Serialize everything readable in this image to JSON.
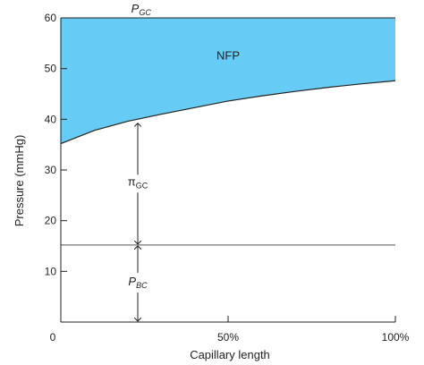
{
  "chart_data": {
    "type": "area",
    "xlabel": "Capillary length",
    "ylabel": "Pressure (mmHg)",
    "xlim": [
      0,
      100
    ],
    "ylim": [
      0,
      60
    ],
    "x_ticks": [
      {
        "value": 0,
        "label": "0"
      },
      {
        "value": 50,
        "label": "50%"
      },
      {
        "value": 100,
        "label": "100%"
      }
    ],
    "y_ticks": [
      {
        "value": 10,
        "label": "10"
      },
      {
        "value": 20,
        "label": "20"
      },
      {
        "value": 30,
        "label": "30"
      },
      {
        "value": 40,
        "label": "40"
      },
      {
        "value": 50,
        "label": "50"
      },
      {
        "value": 60,
        "label": "60"
      }
    ],
    "series": [
      {
        "values_upper": 60,
        "x": [
          0,
          100
        ],
        "y": [
          60,
          60
        ]
      },
      {
        "x": [
          0,
          10,
          20,
          30,
          40,
          50,
          60,
          70,
          80,
          90,
          100
        ],
        "y": [
          35.2,
          37.8,
          39.6,
          41.0,
          42.3,
          43.6,
          44.6,
          45.5,
          46.3,
          47.0,
          47.6
        ]
      },
      {
        "x": [
          0,
          100
        ],
        "y": [
          15.2,
          15.2
        ]
      }
    ],
    "fill_color": "#66CCF5",
    "annotations": {
      "pgc": {
        "main": "P",
        "sub": "GC",
        "x": 24,
        "y": 60
      },
      "nfp": {
        "text": "NFP",
        "x": 50,
        "y": 52.5
      },
      "pigc": {
        "main": "π",
        "sub": "GC",
        "x": 23,
        "y_from": 15.2,
        "y_to": 39.4
      },
      "pbc": {
        "main": "P",
        "sub": "BC",
        "x": 23,
        "y_from": 0,
        "y_to": 15.2
      }
    }
  }
}
